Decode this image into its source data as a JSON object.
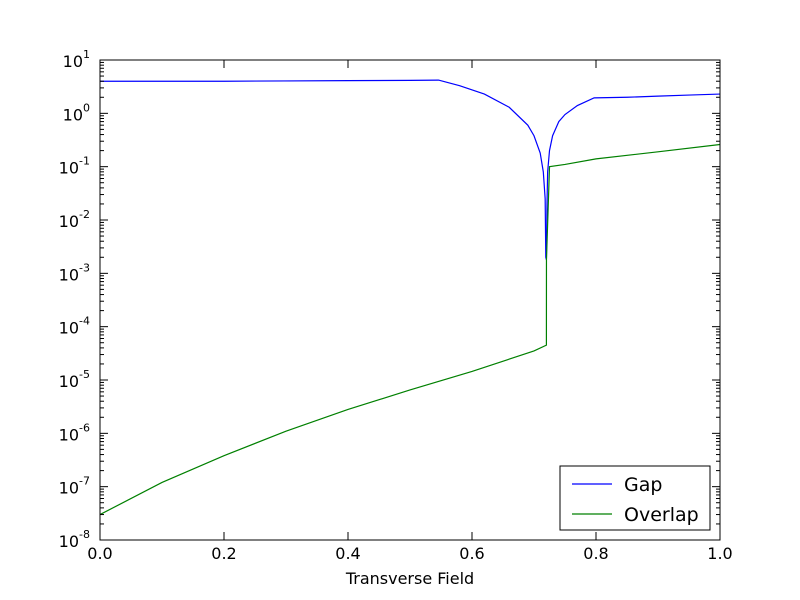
{
  "chart_data": {
    "type": "line",
    "title": "",
    "xlabel": "Transverse Field",
    "ylabel": "",
    "xlim": [
      0.0,
      1.0
    ],
    "ylim": [
      1e-08,
      10
    ],
    "yscale": "log",
    "grid": false,
    "legend_position": "bottom-right",
    "x_ticks": [
      "0.0",
      "0.2",
      "0.4",
      "0.6",
      "0.8",
      "1.0"
    ],
    "y_ticks": [
      {
        "base": "10",
        "exp": "-8"
      },
      {
        "base": "10",
        "exp": "-7"
      },
      {
        "base": "10",
        "exp": "-6"
      },
      {
        "base": "10",
        "exp": "-5"
      },
      {
        "base": "10",
        "exp": "-4"
      },
      {
        "base": "10",
        "exp": "-3"
      },
      {
        "base": "10",
        "exp": "-2"
      },
      {
        "base": "10",
        "exp": "-1"
      },
      {
        "base": "10",
        "exp": "0"
      },
      {
        "base": "10",
        "exp": "1"
      }
    ],
    "series": [
      {
        "name": "Gap",
        "color": "#0000ff",
        "x": [
          0.0,
          0.1,
          0.2,
          0.3,
          0.4,
          0.5,
          0.546,
          0.58,
          0.62,
          0.66,
          0.69,
          0.7,
          0.71,
          0.715,
          0.718,
          0.719,
          0.72,
          0.721,
          0.722,
          0.725,
          0.73,
          0.74,
          0.75,
          0.77,
          0.797,
          0.85,
          0.9,
          0.95,
          1.0
        ],
        "y": [
          4.0,
          4.0,
          4.0,
          4.05,
          4.1,
          4.15,
          4.2,
          3.3,
          2.3,
          1.3,
          0.6,
          0.38,
          0.18,
          0.08,
          0.025,
          0.002,
          0.0018,
          0.02,
          0.08,
          0.2,
          0.38,
          0.7,
          0.95,
          1.4,
          1.95,
          2.0,
          2.1,
          2.2,
          2.3
        ]
      },
      {
        "name": "Overlap",
        "color": "#008000",
        "x": [
          0.0,
          0.1,
          0.2,
          0.3,
          0.4,
          0.5,
          0.6,
          0.7,
          0.72,
          0.7201,
          0.725,
          0.75,
          0.8,
          0.9,
          1.0
        ],
        "y": [
          3e-08,
          1.2e-07,
          3.8e-07,
          1.1e-06,
          2.8e-06,
          6.5e-06,
          1.45e-05,
          3.5e-05,
          4.5e-05,
          0.0018,
          0.1,
          0.11,
          0.14,
          0.19,
          0.26
        ]
      }
    ]
  }
}
